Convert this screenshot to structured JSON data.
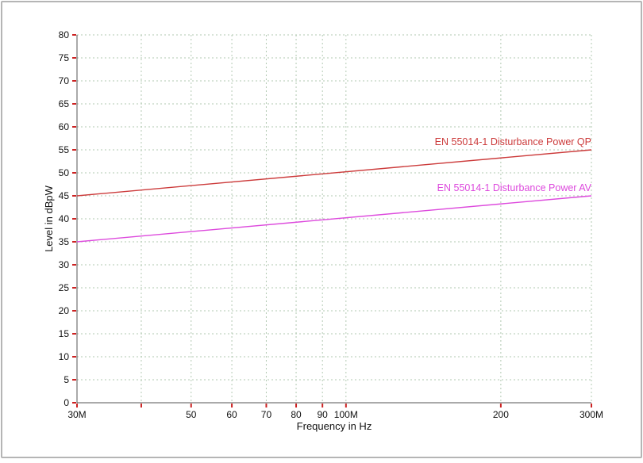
{
  "window": {
    "background": "#ffffff",
    "border_color": "#b5b5b5"
  },
  "chart_data": {
    "type": "line",
    "title": "",
    "xlabel": "Frequency in Hz",
    "ylabel": "Level in dBpW",
    "x_scale": "log",
    "xlim_mhz": [
      30,
      300
    ],
    "ylim": [
      0,
      80
    ],
    "y_tick_step": 5,
    "x_ticks_mhz": [
      30,
      40,
      50,
      60,
      70,
      80,
      90,
      100,
      200,
      300
    ],
    "x_tick_labels": [
      "30M",
      "",
      "50",
      "60",
      "70",
      "80",
      "90",
      "100M",
      "200",
      "300M"
    ],
    "grid": {
      "show": true,
      "color": "#b2c9b2",
      "dash": "2 3"
    },
    "axis_color": "#555555",
    "tick_color": "#cc2222",
    "tick_label_color": "#111111",
    "series": [
      {
        "name": "EN 55014-1 Disturbance Power QP",
        "color": "#cc3b3b",
        "x_mhz": [
          30,
          300
        ],
        "y_dbpw": [
          45,
          55
        ]
      },
      {
        "name": "EN 55014-1 Disturbance Power AV",
        "color": "#dd4add",
        "x_mhz": [
          30,
          300
        ],
        "y_dbpw": [
          35,
          45
        ]
      }
    ],
    "legend_position": "labels-on-lines-right"
  }
}
